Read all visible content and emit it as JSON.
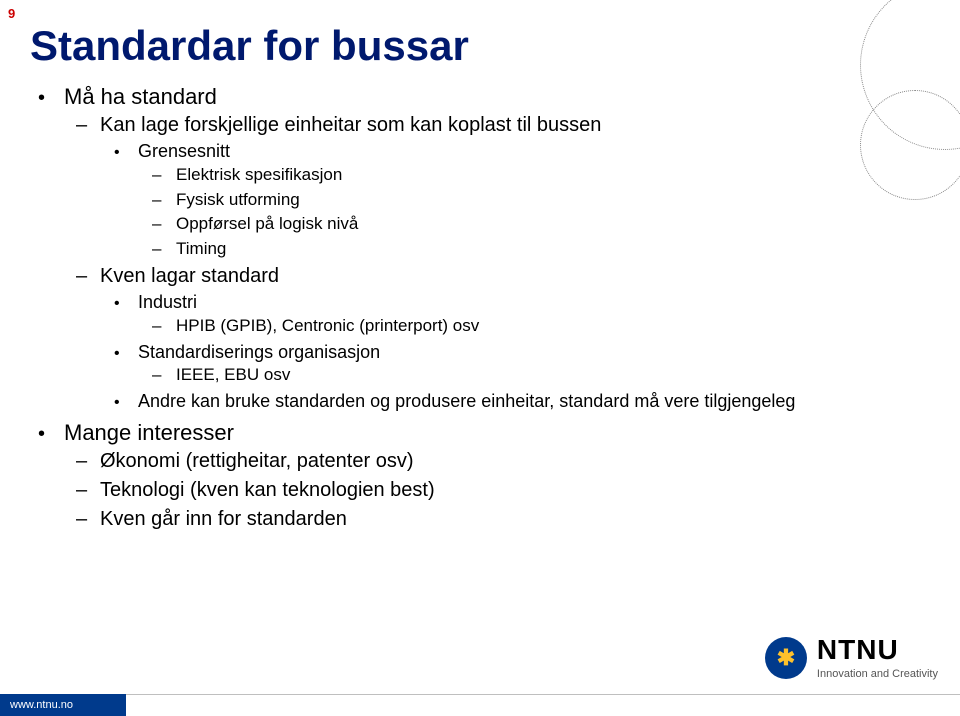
{
  "page_number": "9",
  "title": "Standardar for bussar",
  "bullets": {
    "b1": "Må ha standard",
    "b1_1": "Kan lage forskjellige einheitar som kan koplast til bussen",
    "b1_1_1": "Grensesnitt",
    "b1_1_1_1": "Elektrisk spesifikasjon",
    "b1_1_1_2": "Fysisk utforming",
    "b1_1_1_3": "Oppførsel på logisk nivå",
    "b1_1_1_4": "Timing",
    "b1_2": "Kven lagar standard",
    "b1_2_1": "Industri",
    "b1_2_1_1": "HPIB (GPIB), Centronic (printerport) osv",
    "b1_2_2": "Standardiserings organisasjon",
    "b1_2_2_1": "IEEE, EBU osv",
    "b1_2_3": "Andre kan bruke standarden og produsere einheitar, standard må vere tilgjengeleg",
    "b2": "Mange interesser",
    "b2_1": "Økonomi (rettigheitar, patenter osv)",
    "b2_2": "Teknologi (kven kan teknologien best)",
    "b2_3": "Kven går inn for standarden"
  },
  "logo": {
    "mark": "✱",
    "name": "NTNU",
    "tagline": "Innovation and Creativity"
  },
  "footer": {
    "url": "www.ntnu.no"
  },
  "colors": {
    "title": "#00196e",
    "page_num": "#cc0000",
    "footer_bar": "#003a8c",
    "logo_bg": "#003a8c",
    "logo_star": "#fec12c"
  }
}
